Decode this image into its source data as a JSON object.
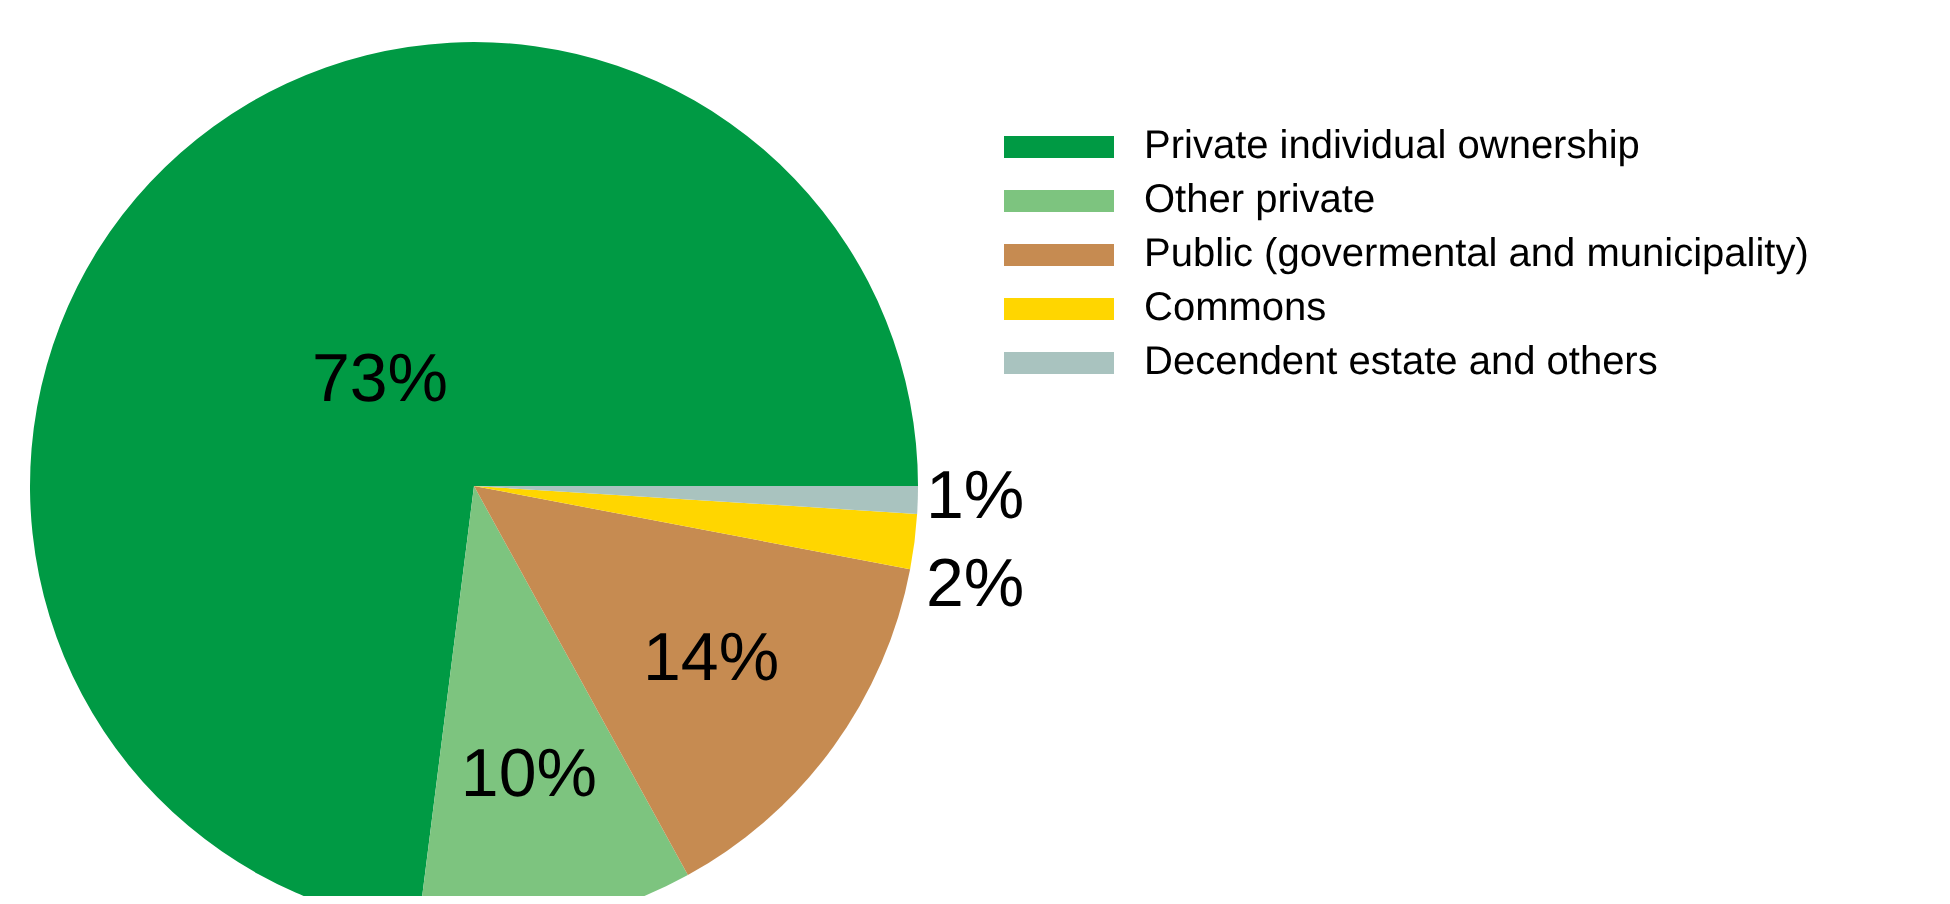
{
  "chart_data": {
    "type": "pie",
    "categories": [
      "Private individual ownership",
      "Other private",
      "Public (govermental and municipality)",
      "Commons",
      "Decendent estate and others"
    ],
    "values": [
      73,
      10,
      14,
      2,
      1
    ],
    "colors": [
      "#009a44",
      "#7dc47f",
      "#c68b51",
      "#ffd600",
      "#a9c3bf"
    ],
    "value_labels": [
      "73%",
      "10%",
      "14%",
      "2%",
      "1%"
    ],
    "legend": "top right"
  }
}
